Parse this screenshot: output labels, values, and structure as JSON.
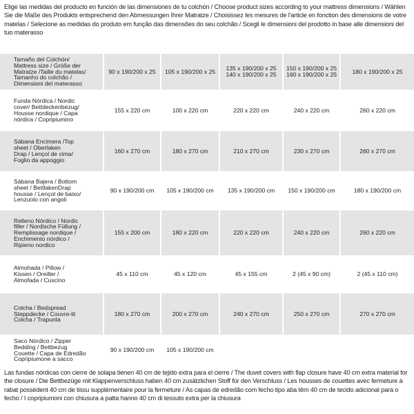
{
  "header": {
    "text": "Elige las medidas del producto en función de las dimensiones de tu colchón / Choose product sizes according to your mattress dimensions / Wählen Sie die Maße des Produkts entsprechend den Abmessungen Ihrer Matratze / Choisissez les mesures de l'article en fonction des dimensions de votre matelas / Selecione as medidas do produto em função das dimensões do seu colchão / Scegli le dimensioni del prodotto in base alle dimensioni del tuo materasso"
  },
  "table": {
    "rows": [
      [
        [
          "Tamaño del Colchón/",
          "Mattress size / Größe der",
          "Matratze /Taille du matelas/",
          "Tamanho do colchão /",
          "Dimensioni del materasso"
        ],
        [
          "90 x 190/200 x 25"
        ],
        [
          "105 x 190/200 x 25"
        ],
        [
          "135 x 190/200 x 25",
          "140 x 190/200 x 25"
        ],
        [
          "150 x 190/200 x 25",
          "160 x 190/200 x 25"
        ],
        [
          "180 x 190/200 x 25"
        ]
      ],
      [
        [
          "Funda Nórdica /  Nordic",
          "cover/ Bettdeckenbezug/",
          "Housse nordique / Capa",
          "nórdica / Copripiumino"
        ],
        [
          "155 x 220 cm"
        ],
        [
          "100 x 220 cm"
        ],
        [
          "220 x 220 cm"
        ],
        [
          "240 x 220 cm"
        ],
        [
          "260 x 220 cm"
        ]
      ],
      [
        [
          "Sábana Encimera /Top",
          "sheet / Oberlaken",
          "Drap / Lençol de cima/",
          "Foglio da appoggio"
        ],
        [
          "160 x 270 cm"
        ],
        [
          "180 x 270 cm"
        ],
        [
          "210 x 270 cm"
        ],
        [
          "230 x 270 cm"
        ],
        [
          "260 x 270 cm"
        ]
      ],
      [
        [
          "Sábana Bajera / Bottom",
          "sheet / BettlakenDrap",
          "housse / Lençol de baixo/",
          "Lenzuolo con angoli"
        ],
        [
          "90 x 190/200 cm"
        ],
        [
          "105 x 190/200 cm"
        ],
        [
          "135 x 190/200 cm"
        ],
        [
          "150 x 190/200 cm"
        ],
        [
          "180 x 190/200 cm"
        ]
      ],
      [
        [
          "Relleno Nórdico /  Nordic",
          "filler / Nordische Füllung /",
          "Remplissage nordique /",
          "Enchimento nórdico /",
          "Ripieno nordico"
        ],
        [
          "155 x 200 cm"
        ],
        [
          "180 x 220 cm"
        ],
        [
          "220 x 220 cm"
        ],
        [
          "240 x 220 cm"
        ],
        [
          "260 x 220 cm"
        ]
      ],
      [
        [
          "Almohada  / Pillow /",
          "Kissen / Oreiller /",
          "Almofada / Cuscino"
        ],
        [
          "45 x 110 cm"
        ],
        [
          "45 x 120 cm"
        ],
        [
          "45 x 155 cm"
        ],
        [
          "2 (45 x 90 cm)"
        ],
        [
          "2 (45 x 110 cm)"
        ]
      ],
      [
        [
          "Colcha / Bedspread",
          "Steppdecke / Couvre-lit",
          "Colcha / Trapunta"
        ],
        [
          "180 x 270 cm"
        ],
        [
          "200 x 270 cm"
        ],
        [
          "240 x 270 cm"
        ],
        [
          "250 x 270 cm"
        ],
        [
          "270 x 270 cm"
        ]
      ],
      [
        [
          "Saco Nórdico / Zipper",
          "Bedding / Bettbezug",
          "Couette / Capa de Edredão",
          "Copripiumone a sacco"
        ],
        [
          "90 x 190/200 cm"
        ],
        [
          "105 x 190/200 cm"
        ]
      ]
    ]
  },
  "footer": {
    "text": "Las fundas nórdicas con cierre de solapa tienen 40 cm de tejido extra para el cierre  /  The duvet covers with flap closure have 40 cm extra material for the closure / Die Bettbezüge mit Klappenverschluss haben 40 cm zusätzlichen Stoff für den Verschluss / Les housses de couettes avec fermeture à rabat possèdent 40 cm de tissu supplémentaire pour la fermeture  / As capas de edredão com fecho tipo aba têm 40 cm de tecido adicional para o fecho / I copripiumoni con chiusura a patta hanno 40 cm di tessuto extra per la chiusura"
  }
}
